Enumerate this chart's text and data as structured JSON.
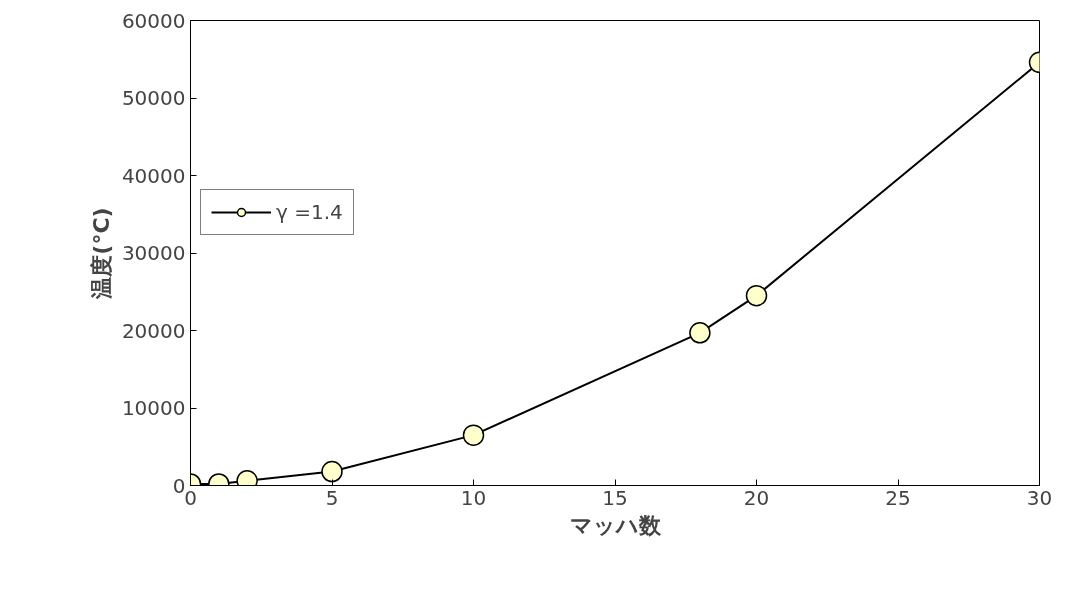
{
  "chart_data": {
    "type": "line",
    "xlabel": "マッハ数",
    "ylabel": "温度(°C)",
    "xlim": [
      0,
      30
    ],
    "xticks": [
      0,
      5,
      10,
      15,
      20,
      25,
      30
    ],
    "ylim": [
      0,
      60000
    ],
    "yticks": [
      0,
      10000,
      20000,
      30000,
      40000,
      50000,
      60000
    ],
    "series": [
      {
        "name": "γ =1.4",
        "color": "#000000",
        "x": [
          0,
          1,
          2,
          5,
          10,
          18,
          20,
          30
        ],
        "values": [
          200,
          200,
          600,
          1800,
          6500,
          19700,
          24500,
          54600
        ]
      }
    ],
    "marker": "circle",
    "line_style": "solid",
    "grid": false,
    "legend": "left"
  }
}
